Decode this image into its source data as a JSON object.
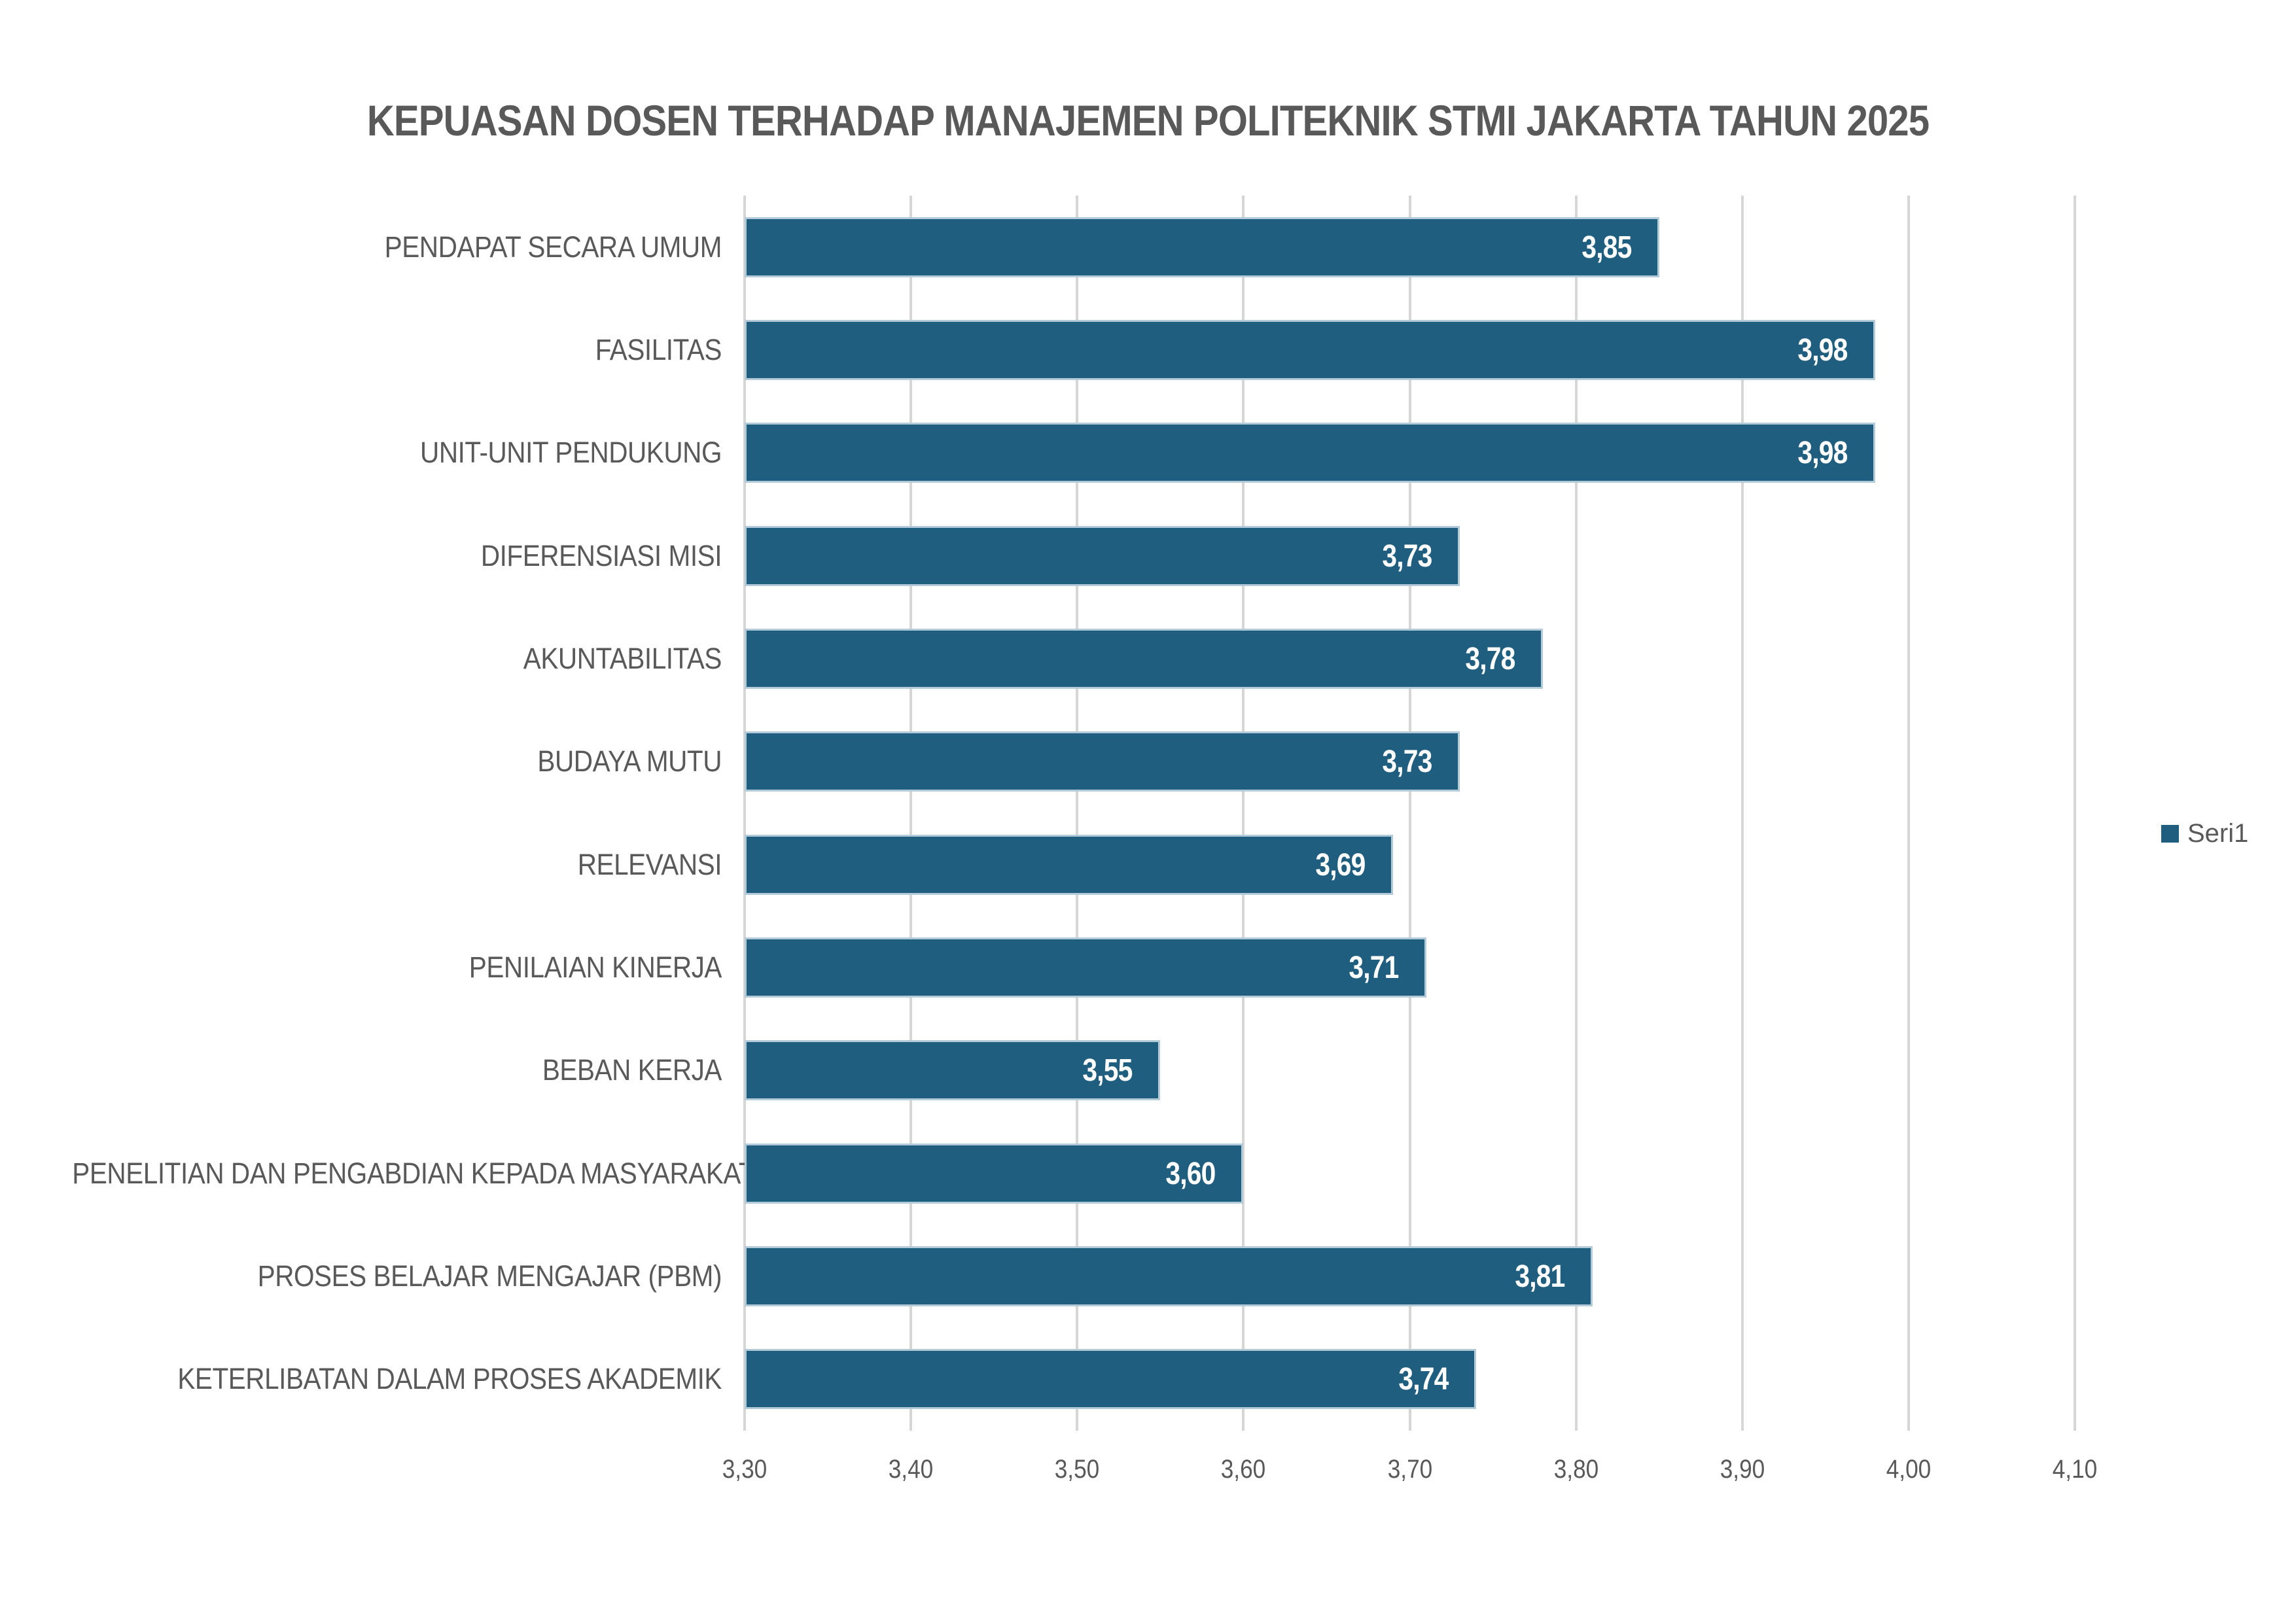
{
  "colors": {
    "bar": "#1F5E7E",
    "bar_border": "#B3CBD9",
    "gridline": "#D6D6D6",
    "text": "#595959",
    "value_label_text": "#FFFFFF",
    "background": "#FFFFFF"
  },
  "legend": {
    "label": "Seri1"
  },
  "chart_data": {
    "type": "bar",
    "orientation": "horizontal",
    "title": "KEPUASAN DOSEN TERHADAP MANAJEMEN POLITEKNIK STMI JAKARTA TAHUN 2025",
    "categories": [
      "PENDAPAT SECARA UMUM",
      "FASILITAS",
      "UNIT-UNIT PENDUKUNG",
      "DIFERENSIASI MISI",
      "AKUNTABILITAS",
      "BUDAYA MUTU",
      "RELEVANSI",
      "PENILAIAN KINERJA",
      "BEBAN KERJA",
      "PENELITIAN DAN PENGABDIAN KEPADA MASYARAKAT",
      "PROSES BELAJAR MENGAJAR (PBM)",
      "KETERLIBATAN DALAM PROSES AKADEMIK"
    ],
    "values": [
      3.85,
      3.98,
      3.98,
      3.73,
      3.78,
      3.73,
      3.69,
      3.71,
      3.55,
      3.6,
      3.81,
      3.74
    ],
    "value_labels": [
      "3,85",
      "3,98",
      "3,98",
      "3,73",
      "3,78",
      "3,73",
      "3,69",
      "3,71",
      "3,55",
      "3,60",
      "3,81",
      "3,74"
    ],
    "series": [
      {
        "name": "Seri1",
        "values": [
          3.85,
          3.98,
          3.98,
          3.73,
          3.78,
          3.73,
          3.69,
          3.71,
          3.55,
          3.6,
          3.81,
          3.74
        ]
      }
    ],
    "xlabel": "",
    "ylabel": "",
    "xlim": [
      3.3,
      4.1
    ],
    "x_ticks": [
      3.3,
      3.4,
      3.5,
      3.6,
      3.7,
      3.8,
      3.9,
      4.0,
      4.1
    ],
    "x_tick_labels": [
      "3,30",
      "3,40",
      "3,50",
      "3,60",
      "3,70",
      "3,80",
      "3,90",
      "4,00",
      "4,10"
    ],
    "grid": true,
    "legend_entries": [
      "Seri1"
    ],
    "legend_position": "right",
    "decimal_separator": ","
  }
}
